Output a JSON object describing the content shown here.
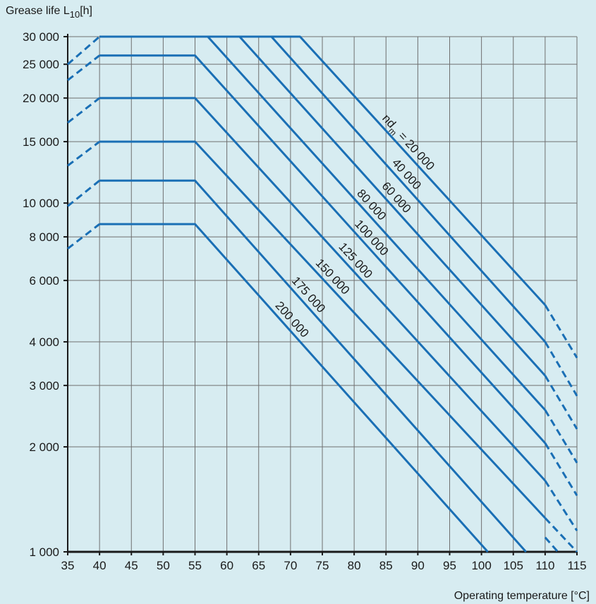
{
  "chart_data": {
    "type": "line",
    "ylabel": "Grease life L",
    "ylabel_sub": "10",
    "ylabel_unit": "[h]",
    "xlabel": "Operating temperature [°C]",
    "xlim": [
      35,
      115
    ],
    "ylim": [
      1000,
      30000
    ],
    "yscale": "log",
    "x_ticks": [
      35,
      40,
      45,
      50,
      55,
      60,
      65,
      70,
      75,
      80,
      85,
      90,
      95,
      100,
      105,
      110,
      115
    ],
    "y_ticks": [
      {
        "value": 1000,
        "label": "1 000"
      },
      {
        "value": 2000,
        "label": "2 000"
      },
      {
        "value": 3000,
        "label": "3 000"
      },
      {
        "value": 4000,
        "label": "4 000"
      },
      {
        "value": 6000,
        "label": "6 000"
      },
      {
        "value": 8000,
        "label": "8 000"
      },
      {
        "value": 10000,
        "label": "10 000"
      },
      {
        "value": 15000,
        "label": "15 000"
      },
      {
        "value": 20000,
        "label": "20 000"
      },
      {
        "value": 25000,
        "label": "25 000"
      },
      {
        "value": 30000,
        "label": "30 000"
      }
    ],
    "grid": true,
    "line_color": "#1a6fb5",
    "series": [
      {
        "name": "nd_m = 20 000",
        "label": "nd  = 20 000",
        "label_main": "nd",
        "label_sub": "m",
        "label_rest": " = 20 000",
        "solid": [
          [
            40,
            30000
          ],
          [
            71.5,
            30000
          ],
          [
            110,
            5100
          ]
        ],
        "dashed": [
          [
            [
              35,
              25000
            ],
            [
              40,
              30000
            ]
          ],
          [
            [
              110,
              5100
            ],
            [
              115,
              3600
            ]
          ]
        ]
      },
      {
        "name": "40 000",
        "label": "40 000",
        "solid": [
          [
            40,
            30000
          ],
          [
            67,
            30000
          ],
          [
            110,
            4000
          ]
        ],
        "dashed": [
          [
            [
              110,
              4000
            ],
            [
              115,
              2800
            ]
          ]
        ]
      },
      {
        "name": "60 000",
        "label": "60 000",
        "solid": [
          [
            40,
            30000
          ],
          [
            62,
            30000
          ],
          [
            110,
            3200
          ]
        ],
        "dashed": [
          [
            [
              110,
              3200
            ],
            [
              115,
              2250
            ]
          ]
        ]
      },
      {
        "name": "80 000",
        "label": "80 000",
        "solid": [
          [
            40,
            30000
          ],
          [
            57,
            30000
          ],
          [
            110,
            2550
          ]
        ],
        "dashed": [
          [
            [
              110,
              2550
            ],
            [
              115,
              1800
            ]
          ]
        ]
      },
      {
        "name": "100 000",
        "label": "100 000",
        "solid": [
          [
            40,
            26500
          ],
          [
            55,
            26500
          ],
          [
            110,
            2050
          ]
        ],
        "dashed": [
          [
            [
              35,
              22500
            ],
            [
              40,
              26500
            ]
          ],
          [
            [
              110,
              2050
            ],
            [
              115,
              1450
            ]
          ]
        ]
      },
      {
        "name": "125 000",
        "label": "125 000",
        "solid": [
          [
            40,
            20000
          ],
          [
            55,
            20000
          ],
          [
            110,
            1600
          ]
        ],
        "dashed": [
          [
            [
              35,
              17000
            ],
            [
              40,
              20000
            ]
          ],
          [
            [
              110,
              1600
            ],
            [
              115,
              1150
            ]
          ]
        ]
      },
      {
        "name": "150 000",
        "label": "150 000",
        "solid": [
          [
            40,
            15000
          ],
          [
            55,
            15000
          ],
          [
            110,
            1250
          ]
        ],
        "dashed": [
          [
            [
              35,
              12800
            ],
            [
              40,
              15000
            ]
          ],
          [
            [
              110,
              1250
            ],
            [
              115,
              1000
            ]
          ]
        ]
      },
      {
        "name": "175 000",
        "label": "175 000",
        "solid": [
          [
            40,
            11600
          ],
          [
            55,
            11600
          ],
          [
            107,
            1000
          ]
        ],
        "dashed": [
          [
            [
              35,
              9800
            ],
            [
              40,
              11600
            ]
          ],
          [
            [
              110,
              1100
            ],
            [
              112,
              1000
            ]
          ]
        ]
      },
      {
        "name": "200 000",
        "label": "200 000",
        "solid": [
          [
            40,
            8700
          ],
          [
            55,
            8700
          ],
          [
            101,
            1000
          ]
        ],
        "dashed": [
          [
            [
              35,
              7400
            ],
            [
              40,
              8700
            ]
          ]
        ]
      }
    ],
    "curve_label_positions": [
      {
        "series": 0,
        "at_x": 87.5
      },
      {
        "series": 1,
        "at_x": 87.2
      },
      {
        "series": 2,
        "at_x": 85.6
      },
      {
        "series": 3,
        "at_x": 81.7
      },
      {
        "series": 4,
        "at_x": 81.7
      },
      {
        "series": 5,
        "at_x": 79.2
      },
      {
        "series": 6,
        "at_x": 75.6
      },
      {
        "series": 7,
        "at_x": 71.8
      },
      {
        "series": 8,
        "at_x": 69.2
      }
    ]
  }
}
